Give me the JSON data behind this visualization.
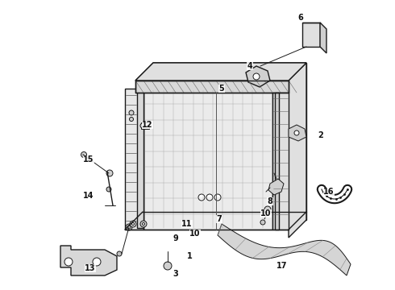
{
  "bg_color": "#ffffff",
  "line_color": "#1a1a1a",
  "label_color": "#111111",
  "lw_main": 1.0,
  "lw_thin": 0.7,
  "labels": [
    [
      "1",
      235,
      318
    ],
    [
      "2",
      398,
      168
    ],
    [
      "3",
      218,
      340
    ],
    [
      "4",
      310,
      82
    ],
    [
      "5",
      275,
      110
    ],
    [
      "6",
      373,
      22
    ],
    [
      "7",
      272,
      272
    ],
    [
      "8",
      335,
      250
    ],
    [
      "9",
      218,
      296
    ],
    [
      "10",
      242,
      290
    ],
    [
      "10",
      330,
      265
    ],
    [
      "11",
      232,
      278
    ],
    [
      "12",
      183,
      155
    ],
    [
      "13",
      112,
      333
    ],
    [
      "14",
      110,
      243
    ],
    [
      "15",
      110,
      198
    ],
    [
      "16",
      408,
      238
    ],
    [
      "17",
      350,
      330
    ]
  ]
}
